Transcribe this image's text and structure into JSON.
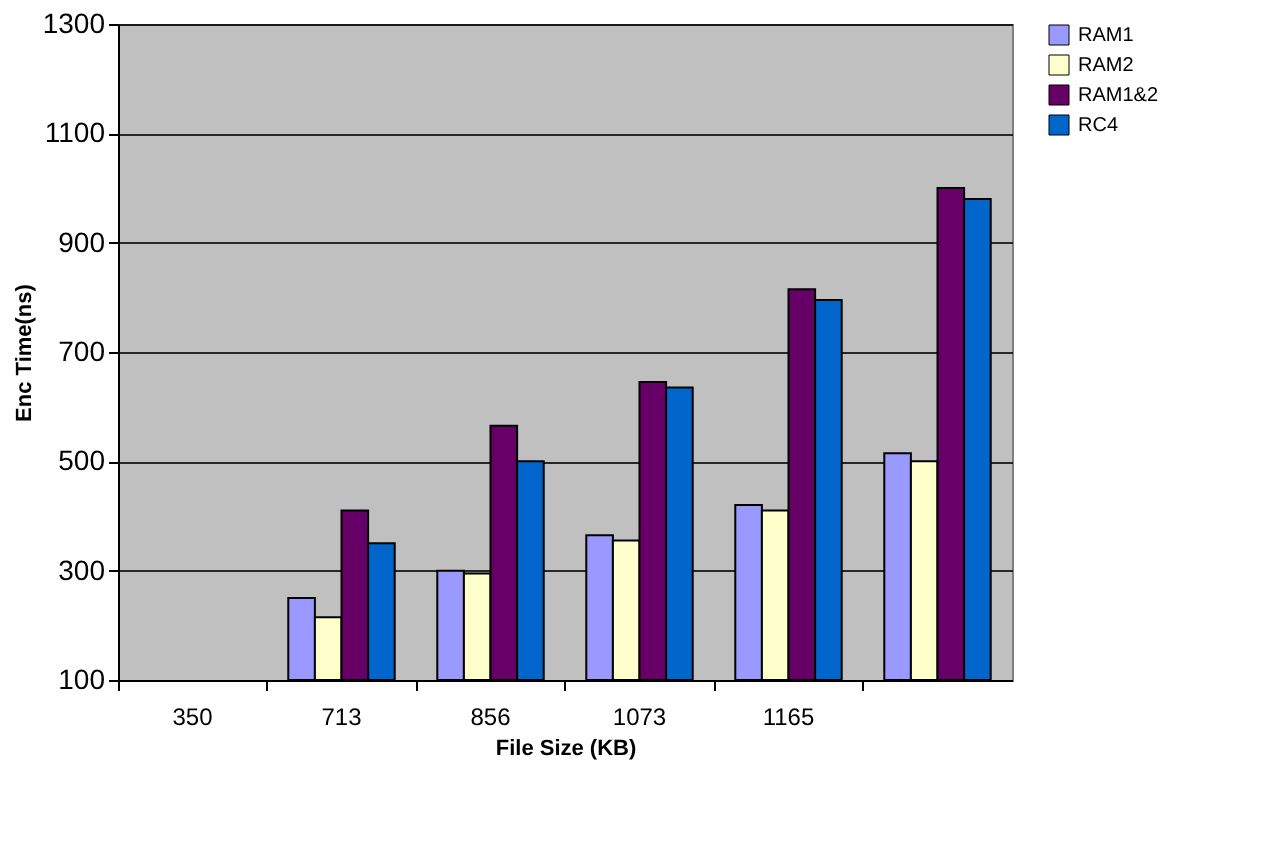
{
  "chart_data": {
    "type": "bar",
    "xlabel": "File Size (KB)",
    "ylabel": "Enc Time(ns)",
    "categories": [
      "350",
      "713",
      "856",
      "1073",
      "1165",
      null
    ],
    "series": [
      {
        "name": "RAM1",
        "color": "#9999ff",
        "values": [
          null,
          250,
          300,
          365,
          420,
          515
        ]
      },
      {
        "name": "RAM2",
        "color": "#ffffcc",
        "values": [
          null,
          215,
          295,
          355,
          410,
          500
        ]
      },
      {
        "name": "RAM1&2",
        "color": "#660066",
        "values": [
          null,
          410,
          565,
          645,
          815,
          1000
        ]
      },
      {
        "name": "RC4",
        "color": "#0066cc",
        "values": [
          null,
          350,
          500,
          635,
          795,
          980
        ]
      }
    ],
    "ylim": [
      100,
      1300
    ],
    "yticks": [
      100,
      300,
      500,
      700,
      900,
      1100,
      1300
    ],
    "grid": "y",
    "legend": "right"
  }
}
